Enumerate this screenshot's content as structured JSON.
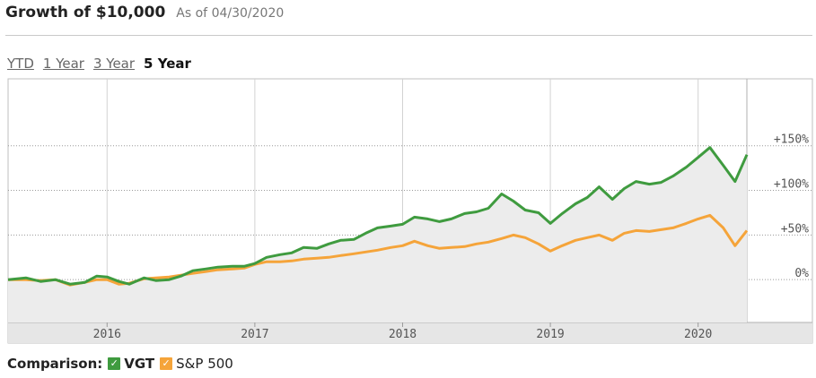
{
  "header": {
    "title": "Growth of $10,000",
    "as_of": "As of 04/30/2020"
  },
  "tabs": [
    {
      "label": "YTD",
      "active": false
    },
    {
      "label": "1 Year",
      "active": false
    },
    {
      "label": "3 Year",
      "active": false
    },
    {
      "label": "5 Year",
      "active": true
    }
  ],
  "comparison": {
    "label": "Comparison:",
    "items": [
      {
        "name": "VGT",
        "color": "#3f9b3f",
        "checked": true,
        "icon": "check-icon"
      },
      {
        "name": "S&P 500",
        "color": "#f5a43a",
        "checked": true,
        "icon": "check-icon"
      }
    ]
  },
  "chart_data": {
    "type": "line",
    "x_tick_labels": [
      "2016",
      "2017",
      "2018",
      "2019",
      "2020"
    ],
    "y_tick_labels": [
      "+150%",
      "+100%",
      "+50%",
      "0%"
    ],
    "x_range": [
      2015.33,
      2020.33
    ],
    "y_range": [
      -48,
      225
    ],
    "y_unit": "%",
    "grid": true,
    "series": [
      {
        "name": "VGT",
        "color": "#3f9b3f",
        "x": [
          2015.33,
          2015.45,
          2015.55,
          2015.65,
          2015.75,
          2015.85,
          2015.93,
          2016.0,
          2016.08,
          2016.15,
          2016.25,
          2016.33,
          2016.42,
          2016.5,
          2016.58,
          2016.67,
          2016.75,
          2016.85,
          2016.93,
          2017.0,
          2017.08,
          2017.17,
          2017.25,
          2017.33,
          2017.42,
          2017.5,
          2017.58,
          2017.67,
          2017.75,
          2017.83,
          2017.92,
          2018.0,
          2018.08,
          2018.17,
          2018.25,
          2018.33,
          2018.42,
          2018.5,
          2018.58,
          2018.67,
          2018.75,
          2018.83,
          2018.92,
          2019.0,
          2019.08,
          2019.17,
          2019.25,
          2019.33,
          2019.42,
          2019.5,
          2019.58,
          2019.67,
          2019.75,
          2019.83,
          2019.92,
          2020.0,
          2020.08,
          2020.17,
          2020.25,
          2020.33
        ],
        "y": [
          0,
          2,
          -2,
          0,
          -5,
          -3,
          4,
          3,
          -2,
          -5,
          2,
          -1,
          0,
          4,
          10,
          12,
          14,
          15,
          15,
          18,
          25,
          28,
          30,
          36,
          35,
          40,
          44,
          45,
          52,
          58,
          60,
          62,
          70,
          68,
          65,
          68,
          74,
          76,
          80,
          96,
          88,
          78,
          75,
          63,
          74,
          85,
          92,
          104,
          90,
          102,
          110,
          107,
          109,
          116,
          126,
          137,
          148,
          128,
          110,
          140
        ]
      },
      {
        "name": "S&P 500",
        "color": "#f5a43a",
        "x": [
          2015.33,
          2015.45,
          2015.55,
          2015.65,
          2015.75,
          2015.85,
          2015.93,
          2016.0,
          2016.08,
          2016.15,
          2016.25,
          2016.33,
          2016.42,
          2016.5,
          2016.58,
          2016.67,
          2016.75,
          2016.85,
          2016.93,
          2017.0,
          2017.08,
          2017.17,
          2017.25,
          2017.33,
          2017.42,
          2017.5,
          2017.58,
          2017.67,
          2017.75,
          2017.83,
          2017.92,
          2018.0,
          2018.08,
          2018.17,
          2018.25,
          2018.33,
          2018.42,
          2018.5,
          2018.58,
          2018.67,
          2018.75,
          2018.83,
          2018.92,
          2019.0,
          2019.08,
          2019.17,
          2019.25,
          2019.33,
          2019.42,
          2019.5,
          2019.58,
          2019.67,
          2019.75,
          2019.83,
          2019.92,
          2020.0,
          2020.08,
          2020.17,
          2020.25,
          2020.33
        ],
        "y": [
          0,
          0,
          -1,
          0,
          -6,
          -3,
          0,
          0,
          -5,
          -4,
          1,
          2,
          3,
          5,
          7,
          9,
          11,
          12,
          13,
          17,
          20,
          20,
          21,
          23,
          24,
          25,
          27,
          29,
          31,
          33,
          36,
          38,
          43,
          38,
          35,
          36,
          37,
          40,
          42,
          46,
          50,
          47,
          40,
          32,
          38,
          44,
          47,
          50,
          44,
          52,
          55,
          54,
          56,
          58,
          63,
          68,
          72,
          58,
          38,
          55
        ]
      }
    ]
  }
}
